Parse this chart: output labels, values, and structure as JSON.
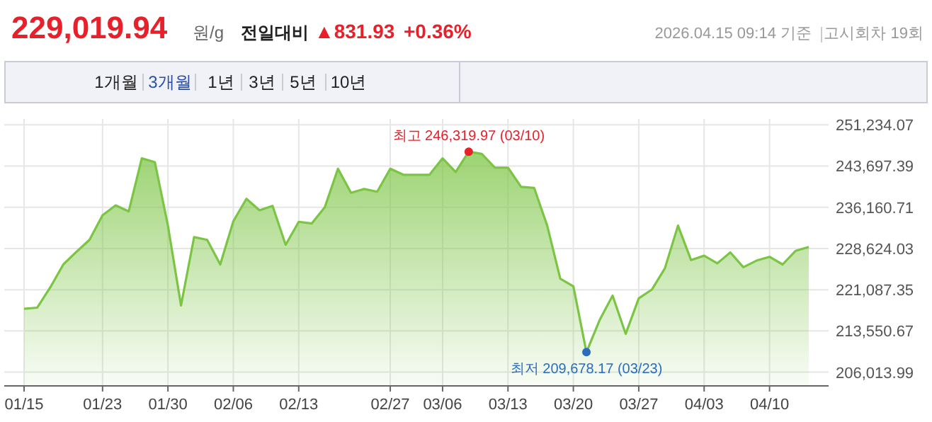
{
  "chart_data": {
    "type": "area",
    "title": "229,019.94",
    "annotations": [
      "원/g",
      "전일대비",
      "▲831.93",
      "+0.36%",
      "2026.04.15 09:14 기준",
      "고시회차 19회",
      "1개월",
      "3개월",
      "1년",
      "3년",
      "5년",
      "10년",
      {
        "text": "최고 246,319.97 (03/10)",
        "y": 246319.97
      },
      {
        "text": "최저 209,678.17 (03/23)",
        "y": 209678.17
      }
    ],
    "categories": [
      "01/15",
      null,
      null,
      null,
      null,
      null,
      "01/23",
      null,
      null,
      null,
      null,
      "01/30",
      null,
      null,
      null,
      null,
      "02/06",
      null,
      null,
      null,
      null,
      "02/13",
      null,
      null,
      null,
      null,
      null,
      null,
      "02/27",
      null,
      null,
      null,
      "03/06",
      null,
      null,
      null,
      null,
      "03/13",
      null,
      null,
      null,
      null,
      "03/20",
      null,
      null,
      null,
      null,
      "03/27",
      null,
      null,
      null,
      null,
      "04/03",
      null,
      null,
      null,
      null,
      "04/10",
      null,
      null,
      null
    ],
    "series": [
      {
        "color": "#7cc544",
        "values": [
          217600,
          217800,
          221500,
          225700,
          228000,
          230200,
          234700,
          236500,
          235400,
          245100,
          244400,
          232800,
          218200,
          230700,
          230200,
          225700,
          233600,
          237700,
          235600,
          236400,
          229300,
          233500,
          233200,
          236200,
          243200,
          238800,
          239500,
          239000,
          243200,
          242100,
          242100,
          242100,
          245100,
          242600,
          246319.97,
          245900,
          243400,
          243400,
          239900,
          239700,
          232800,
          223100,
          221700,
          209678.17,
          215500,
          220000,
          213000,
          219500,
          221100,
          225000,
          232800,
          226500,
          227300,
          225900,
          227900,
          225200,
          226400,
          227100,
          225700,
          228200,
          228900
        ]
      }
    ],
    "ylim": [
      203500,
      252300
    ],
    "yticks": [
      {
        "value": 206013.99,
        "label": "206,013.99"
      },
      {
        "value": 213550.67,
        "label": "213,550.67"
      },
      {
        "value": 221087.35,
        "label": "221,087.35"
      },
      {
        "value": 228624.03,
        "label": "228,624.03"
      },
      {
        "value": 236160.71,
        "label": "236,160.71"
      },
      {
        "value": 243697.39,
        "label": "243,697.39"
      },
      {
        "value": 251234.07,
        "label": "251,234.07"
      }
    ],
    "grid": true
  }
}
